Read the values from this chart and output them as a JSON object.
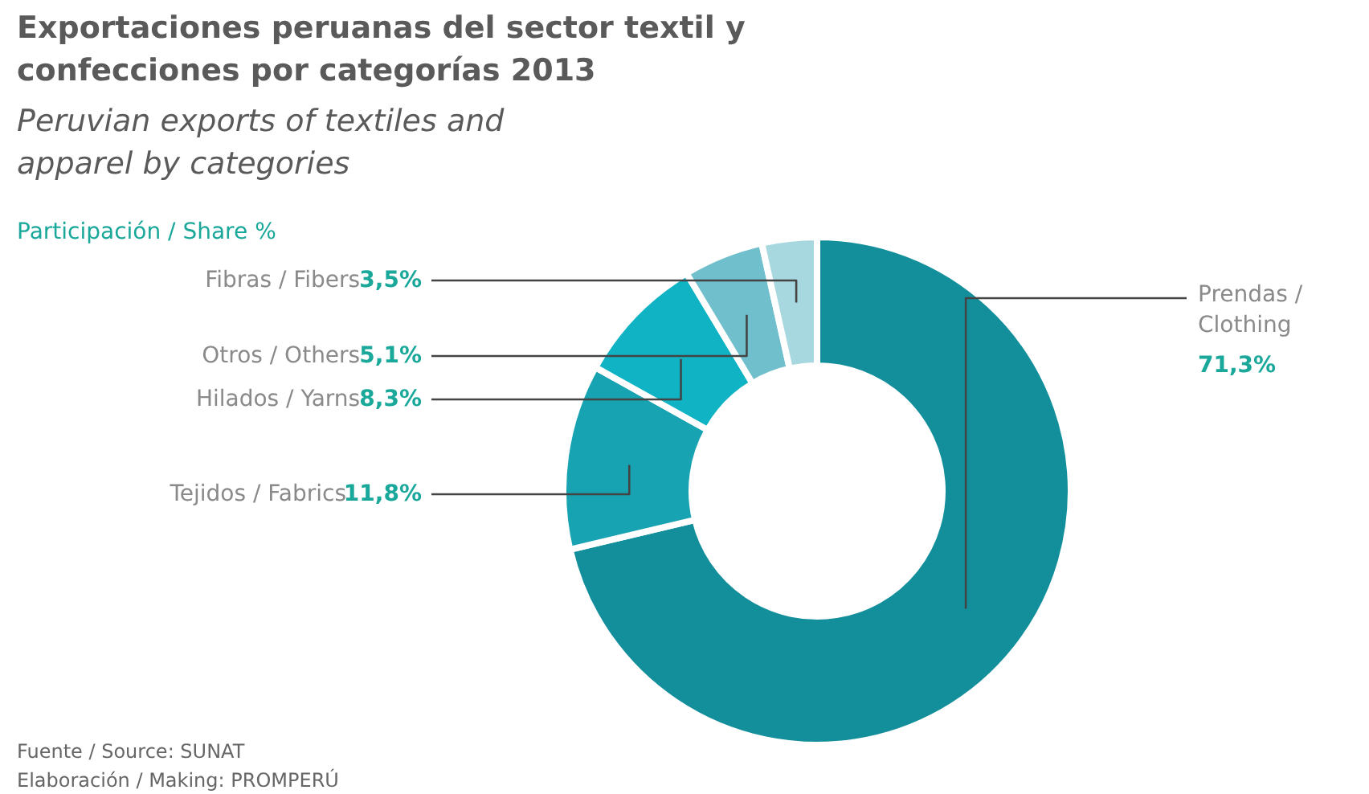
{
  "chart_data": {
    "type": "donut",
    "title": "Exportaciones peruanas del sector textil y\nconfecciones por categorías 2013",
    "subtitle": "Peruvian exports of textiles and\napparel by categories",
    "categories": [
      "Prendas / Clothing",
      "Tejidos / Fabrics",
      "Hilados / Yarns",
      "Otros / Others",
      "Fibras / Fibers"
    ],
    "values": [
      71.3,
      11.8,
      8.3,
      5.1,
      3.5
    ],
    "value_labels": [
      "71,3%",
      "11,8%",
      "8,3%",
      "5,1%",
      "3,5%"
    ],
    "colors": [
      "#138f9c",
      "#17a3b1",
      "#0fb3c3",
      "#70bfcc",
      "#a8d8df"
    ],
    "annotations": [
      "Participación / Share %",
      "Fuente / Source: SUNAT",
      "Elaboración / Making: PROMPERÚ"
    ]
  }
}
